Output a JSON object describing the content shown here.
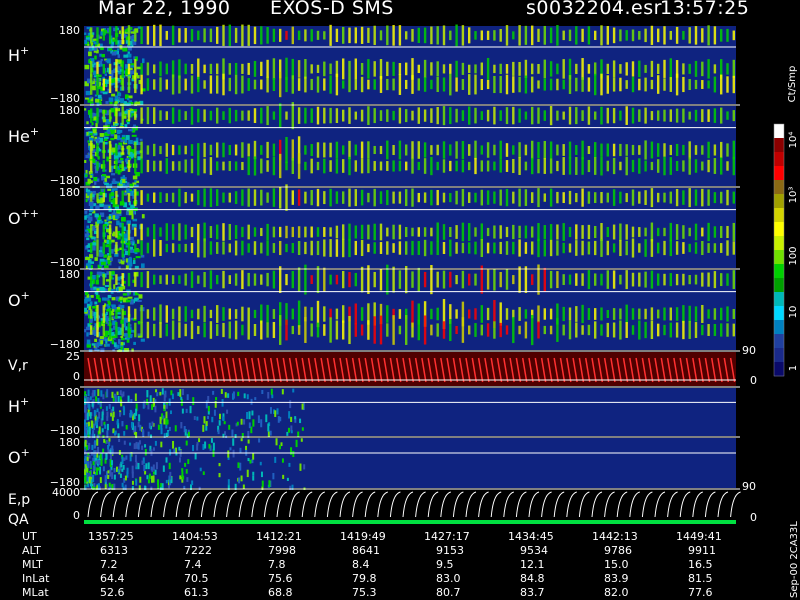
{
  "header": {
    "date": "Mar 22, 1990",
    "mission": "EXOS-D SMS",
    "file": "s0032204.esr",
    "time": "13:57:25"
  },
  "chart_data": {
    "type": "heatmap",
    "title": "Mar 22, 1990   EXOS-D SMS",
    "panels": [
      {
        "label": "H",
        "superscript": "+",
        "ylim": [
          -180,
          180
        ],
        "top_tick": "180",
        "bottom_tick": "−180"
      },
      {
        "label": "He",
        "superscript": "+",
        "ylim": [
          -180,
          180
        ],
        "top_tick": "180",
        "bottom_tick": "−180"
      },
      {
        "label": "O",
        "superscript": "++",
        "ylim": [
          -180,
          180
        ],
        "top_tick": "180",
        "bottom_tick": "−180"
      },
      {
        "label": "O",
        "superscript": "+",
        "ylim": [
          -180,
          180
        ],
        "top_tick": "180",
        "bottom_tick": "−180"
      },
      {
        "label": "V,r",
        "superscript": "",
        "left_ticks": [
          "25",
          "0"
        ],
        "right_ticks": [
          "90",
          "0"
        ]
      },
      {
        "label": "H",
        "superscript": "+",
        "ylim": [
          -180,
          180
        ],
        "top_tick": "180",
        "bottom_tick": "−180"
      },
      {
        "label": "O",
        "superscript": "+",
        "ylim": [
          -180,
          180
        ],
        "top_tick": "180",
        "bottom_tick": "−180"
      },
      {
        "label": "E,p",
        "superscript": "",
        "left_ticks": [
          "4000",
          "0"
        ],
        "right_ticks": [
          "90",
          "0"
        ]
      },
      {
        "label": "QA",
        "superscript": ""
      }
    ],
    "colorbar": {
      "unit": "Ct/Smp",
      "labels": [
        "10⁴",
        "10³",
        "100",
        "10",
        "1"
      ],
      "colors": [
        "#ffffff",
        "#8b0000",
        "#c00000",
        "#ff0000",
        "#8b6914",
        "#a0a000",
        "#d4d400",
        "#ffff00",
        "#c8f000",
        "#70e000",
        "#00d000",
        "#00a000",
        "#00b8b8",
        "#00d8ff",
        "#0080c0",
        "#2040a0",
        "#1a2a8a",
        "#0a0a6a"
      ]
    },
    "background_color": "#0f2380",
    "ephemeris": {
      "labels": [
        "UT",
        "ALT",
        "MLT",
        "InLat",
        "MLat"
      ],
      "columns": [
        {
          "UT": "1357:25",
          "ALT": "6313",
          "MLT": "7.2",
          "InLat": "64.4",
          "MLat": "52.6"
        },
        {
          "UT": "1404:53",
          "ALT": "7222",
          "MLT": "7.4",
          "InLat": "70.5",
          "MLat": "61.3"
        },
        {
          "UT": "1412:21",
          "ALT": "7998",
          "MLT": "7.8",
          "InLat": "75.6",
          "MLat": "68.8"
        },
        {
          "UT": "1419:49",
          "ALT": "8641",
          "MLT": "8.4",
          "InLat": "79.8",
          "MLat": "75.3"
        },
        {
          "UT": "1427:17",
          "ALT": "9153",
          "MLT": "9.5",
          "InLat": "83.0",
          "MLat": "80.7"
        },
        {
          "UT": "1434:45",
          "ALT": "9534",
          "MLT": "12.1",
          "InLat": "84.8",
          "MLat": "83.7"
        },
        {
          "UT": "1442:13",
          "ALT": "9786",
          "MLT": "15.0",
          "InLat": "83.9",
          "MLat": "82.0"
        },
        {
          "UT": "1449:41",
          "ALT": "9911",
          "MLT": "16.5",
          "InLat": "81.5",
          "MLat": "77.6"
        }
      ]
    },
    "footer_code": "Sep-00  2CA33L"
  }
}
